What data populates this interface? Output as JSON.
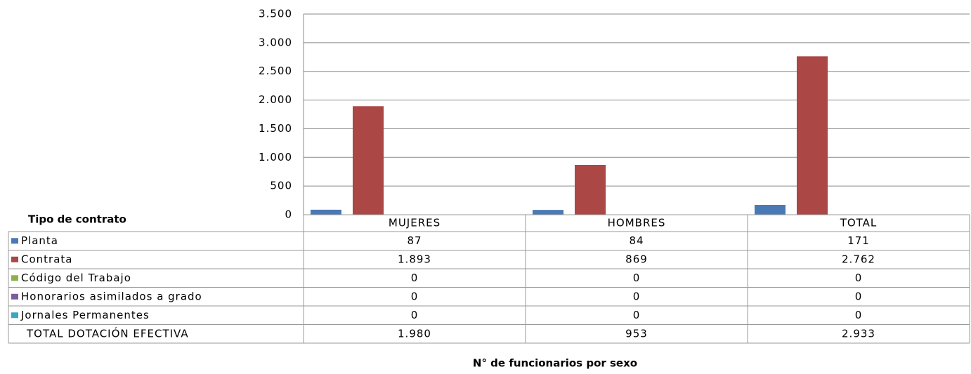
{
  "chart_data": {
    "type": "bar",
    "categories": [
      "MUJERES",
      "HOMBRES",
      "TOTAL"
    ],
    "series": [
      {
        "name": "Planta",
        "color": "#4a7ab5",
        "values": [
          87,
          84,
          171
        ]
      },
      {
        "name": "Contrata",
        "color": "#ab4744",
        "values": [
          1893,
          869,
          2762
        ],
        "value_labels": [
          "1.893",
          "869",
          "2.762"
        ]
      },
      {
        "name": "Código del Trabajo",
        "color": "#8eb04a",
        "values": [
          0,
          0,
          0
        ]
      },
      {
        "name": "Honorarios asimilados a grado",
        "color": "#7b5d9e",
        "values": [
          0,
          0,
          0
        ]
      },
      {
        "name": "Jornales Permanentes",
        "color": "#3fa5c0",
        "values": [
          0,
          0,
          0
        ]
      }
    ],
    "totals": {
      "name": "TOTAL DOTACIÓN EFECTIVA",
      "values": [
        1980,
        953,
        2933
      ],
      "value_labels": [
        "1.980",
        "953",
        "2.933"
      ]
    },
    "table_title": "Tipo de contrato",
    "xlabel": "N° de funcionarios por sexo",
    "ylim": [
      0,
      3500
    ],
    "yticks": [
      0,
      500,
      {
        "value": 1000,
        "label": "1.000"
      },
      {
        "value": 1500,
        "label": "1.500"
      },
      {
        "value": 2000,
        "label": "2.000"
      },
      {
        "value": 2500,
        "label": "2.500"
      },
      {
        "value": 3000,
        "label": "3.000"
      },
      {
        "value": 3500,
        "label": "3.500"
      }
    ],
    "grid": true
  }
}
